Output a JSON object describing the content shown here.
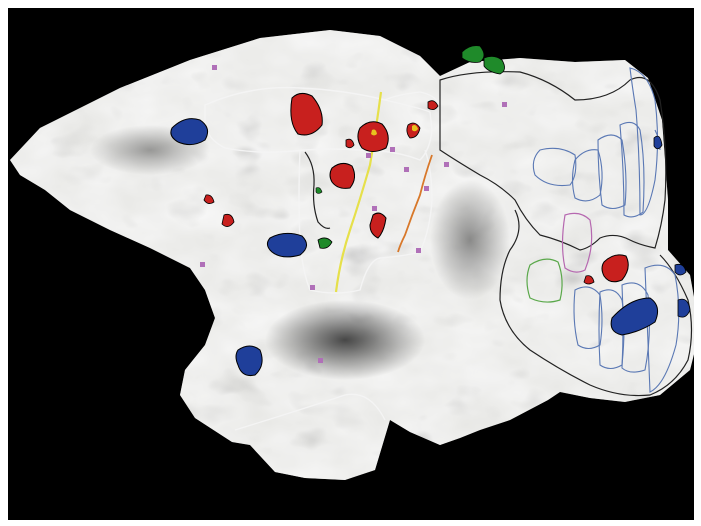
{
  "figure": {
    "colors": {
      "background": "#000000",
      "cortex_light": "#e6e6e3",
      "cortex_dark": "#3a3a3a",
      "activation_red": "#c8201e",
      "activation_core": "#8c1412",
      "activation_yellow": "#e8c21e",
      "activation_blue": "#1f3f9a",
      "activation_green": "#1f8a2a",
      "foci_magenta": "#b070b8",
      "outline_white": "#f4f4f4",
      "outline_black": "#222222",
      "line_yellow": "#e6e04a",
      "line_orange": "#d8782a",
      "roi_blue": "#5a78b4",
      "roi_magenta": "#b668b0",
      "roi_green": "#5aa84a"
    }
  }
}
